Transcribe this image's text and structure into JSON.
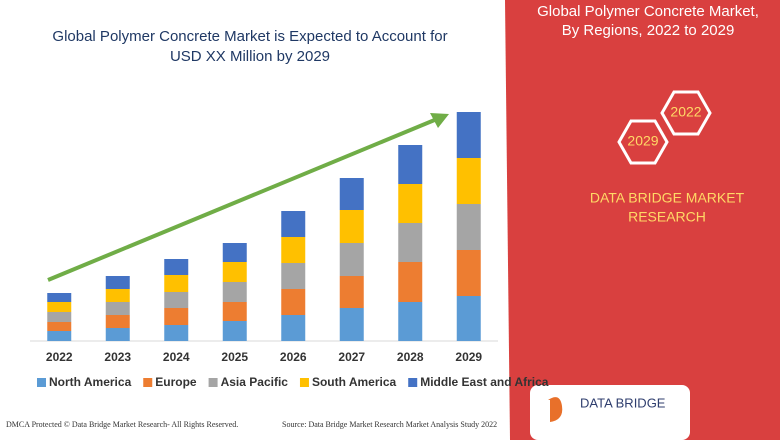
{
  "chart_data": {
    "type": "bar",
    "stacked": true,
    "title": "Global Polymer Concrete Market is Expected to Account for USD XX Million by 2029",
    "categories": [
      "2022",
      "2023",
      "2024",
      "2025",
      "2026",
      "2027",
      "2028",
      "2029"
    ],
    "series": [
      {
        "name": "North America",
        "color": "#5b9bd5",
        "values": [
          10,
          13,
          16,
          20,
          26,
          33,
          39,
          45
        ]
      },
      {
        "name": "Europe",
        "color": "#ed7d31",
        "values": [
          9,
          13,
          17,
          19,
          26,
          32,
          40,
          46
        ]
      },
      {
        "name": "Asia Pacific",
        "color": "#a5a5a5",
        "values": [
          10,
          13,
          16,
          20,
          26,
          33,
          39,
          46
        ]
      },
      {
        "name": "South America",
        "color": "#ffc000",
        "values": [
          10,
          13,
          17,
          20,
          26,
          33,
          39,
          46
        ]
      },
      {
        "name": "Middle East and Africa",
        "color": "#4472c4",
        "values": [
          9,
          13,
          16,
          19,
          26,
          32,
          39,
          46
        ]
      }
    ],
    "ylim": [
      0,
      229
    ],
    "grid": false,
    "legend": "bottom"
  },
  "panel": {
    "title_line1": "Global Polymer Concrete Market,",
    "title_line2": "By Regions, 2022 to 2029",
    "hex_start": "2022",
    "hex_end": "2029",
    "brand_line1": "DATA BRIDGE MARKET",
    "brand_line2": "RESEARCH"
  },
  "footer": {
    "dmca": "DMCA Protected © Data Bridge Market Research- All Rights Reserved.",
    "source": "Source: Data Bridge Market Research Market Analysis Study 2022",
    "logo": "DATA BRIDGE"
  }
}
